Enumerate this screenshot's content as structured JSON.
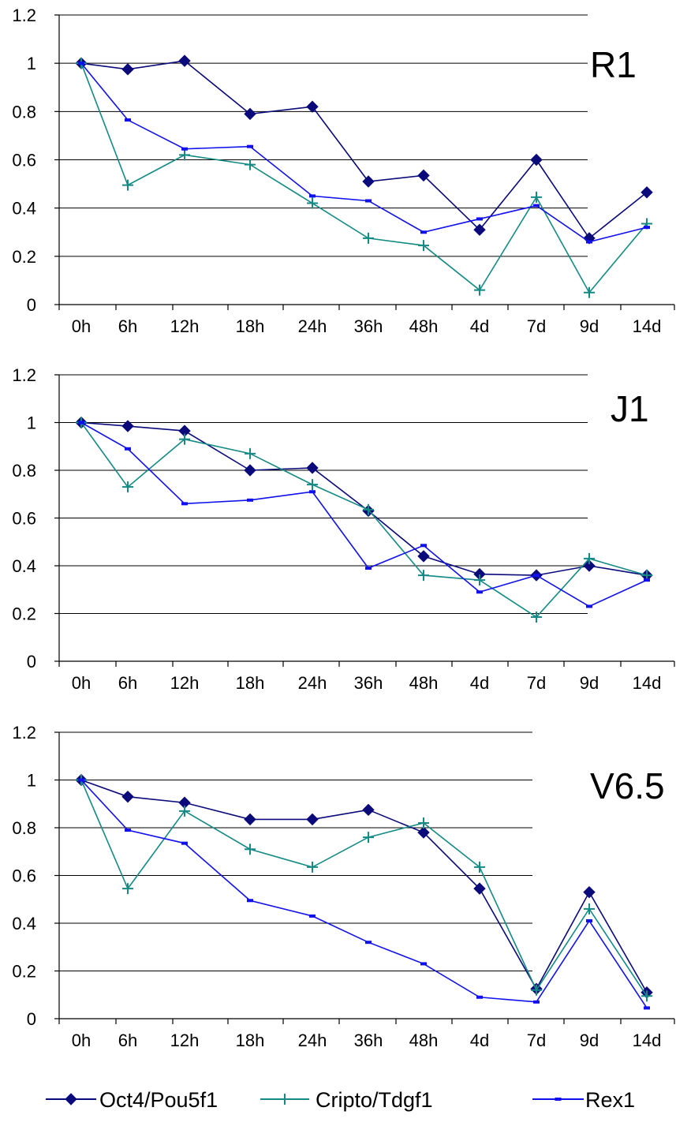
{
  "colors": {
    "oct4": "#0a0a7a",
    "cripto": "#138a84",
    "rex1": "#1010ee"
  },
  "legend": [
    {
      "key": "oct4",
      "label": "Oct4/Pou5f1",
      "marker": "diamond"
    },
    {
      "key": "cripto",
      "label": "Cripto/Tdgf1",
      "marker": "plus"
    },
    {
      "key": "rex1",
      "label": "Rex1",
      "marker": "dash"
    }
  ],
  "chart_data": [
    {
      "type": "line",
      "title": "R1",
      "categories": [
        "0h",
        "6h",
        "12h",
        "18h",
        "24h",
        "36h",
        "48h",
        "4d",
        "7d",
        "9d",
        "14d"
      ],
      "yticks": [
        "0",
        "0.2",
        "0.4",
        "0.6",
        "0.8",
        "1",
        "1.2"
      ],
      "ylim": [
        0,
        1.2
      ],
      "grid": true,
      "series": [
        {
          "name": "Oct4/Pou5f1",
          "key": "oct4",
          "values": [
            1.0,
            0.975,
            1.01,
            0.79,
            0.82,
            0.51,
            0.535,
            0.31,
            0.6,
            0.275,
            0.465
          ]
        },
        {
          "name": "Cripto/Tdgf1",
          "key": "cripto",
          "values": [
            1.0,
            0.495,
            0.62,
            0.58,
            0.42,
            0.275,
            0.245,
            0.06,
            0.445,
            0.05,
            0.335
          ]
        },
        {
          "name": "Rex1",
          "key": "rex1",
          "values": [
            1.0,
            0.765,
            0.645,
            0.655,
            0.45,
            0.43,
            0.3,
            0.355,
            0.41,
            0.26,
            0.32
          ]
        }
      ]
    },
    {
      "type": "line",
      "title": "J1",
      "categories": [
        "0h",
        "6h",
        "12h",
        "18h",
        "24h",
        "36h",
        "48h",
        "4d",
        "7d",
        "9d",
        "14d"
      ],
      "yticks": [
        "0",
        "0.2",
        "0.4",
        "0.6",
        "0.8",
        "1",
        "1.2"
      ],
      "ylim": [
        0,
        1.2
      ],
      "grid": true,
      "series": [
        {
          "name": "Oct4/Pou5f1",
          "key": "oct4",
          "values": [
            1.0,
            0.985,
            0.965,
            0.8,
            0.81,
            0.63,
            0.44,
            0.365,
            0.36,
            0.4,
            0.36
          ]
        },
        {
          "name": "Cripto/Tdgf1",
          "key": "cripto",
          "values": [
            1.0,
            0.73,
            0.93,
            0.87,
            0.74,
            0.635,
            0.36,
            0.34,
            0.185,
            0.43,
            0.36
          ]
        },
        {
          "name": "Rex1",
          "key": "rex1",
          "values": [
            1.0,
            0.89,
            0.66,
            0.675,
            0.71,
            0.39,
            0.485,
            0.29,
            0.36,
            0.23,
            0.34
          ]
        }
      ]
    },
    {
      "type": "line",
      "title": "V6.5",
      "categories": [
        "0h",
        "6h",
        "12h",
        "18h",
        "24h",
        "36h",
        "48h",
        "4d",
        "7d",
        "9d",
        "14d"
      ],
      "yticks": [
        "0",
        "0.2",
        "0.4",
        "0.6",
        "0.8",
        "1",
        "1.2"
      ],
      "ylim": [
        0,
        1.2
      ],
      "grid": true,
      "series": [
        {
          "name": "Oct4/Pou5f1",
          "key": "oct4",
          "values": [
            1.0,
            0.93,
            0.905,
            0.835,
            0.835,
            0.875,
            0.78,
            0.545,
            0.125,
            0.53,
            0.11
          ]
        },
        {
          "name": "Cripto/Tdgf1",
          "key": "cripto",
          "values": [
            1.0,
            0.545,
            0.87,
            0.71,
            0.635,
            0.76,
            0.82,
            0.635,
            0.12,
            0.46,
            0.095
          ]
        },
        {
          "name": "Rex1",
          "key": "rex1",
          "values": [
            1.0,
            0.79,
            0.735,
            0.495,
            0.43,
            0.32,
            0.23,
            0.09,
            0.07,
            0.41,
            0.045
          ]
        }
      ]
    }
  ]
}
